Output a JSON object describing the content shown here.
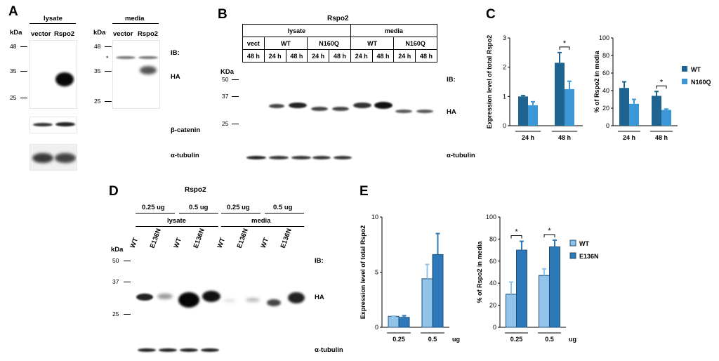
{
  "panelA": {
    "letter": "A",
    "lysate_title": "lysate",
    "media_title": "media",
    "lysate_lanes": [
      "vector",
      "Rspo2"
    ],
    "media_lanes": [
      "vector",
      "Rspo2"
    ],
    "kda": "kDa",
    "markers_lysate": [
      "48",
      "35",
      "25"
    ],
    "markers_media": [
      "48",
      "35",
      "25"
    ],
    "asterisk": "*",
    "ib": "IB:",
    "ha": "HA",
    "beta_catenin": "β-catenin",
    "alpha_tubulin": "α-tubulin"
  },
  "panelB": {
    "letter": "B",
    "title": "Rspo2",
    "groups": [
      "lysate",
      "media"
    ],
    "subgroups": [
      "vect",
      "WT",
      "N160Q",
      "WT",
      "N160Q"
    ],
    "times": [
      "48 h",
      "24 h",
      "48 h",
      "24 h",
      "48 h",
      "24 h",
      "48 h",
      "24 h",
      "48 h"
    ],
    "kda": "KDa",
    "markers": [
      "50",
      "37",
      "25"
    ],
    "ib": "IB:",
    "ha": "HA",
    "alpha_tubulin": "α-tubulin"
  },
  "panelC": {
    "letter": "C",
    "legend": [
      "WT",
      "N160Q"
    ],
    "sig": "*"
  },
  "panelD": {
    "letter": "D",
    "title": "Rspo2",
    "amounts": [
      "0.25 ug",
      "0.5 ug",
      "0.25 ug",
      "0.5 ug"
    ],
    "groups": [
      "lysate",
      "media"
    ],
    "lanes": [
      "WT",
      "E136N",
      "WT",
      "E136N",
      "WT",
      "E136N",
      "WT",
      "E136N"
    ],
    "kda": "kDa",
    "markers": [
      "50",
      "37",
      "25"
    ],
    "ib": "IB:",
    "ha": "HA",
    "alpha_tubulin": "α-tubulin"
  },
  "panelE": {
    "letter": "E",
    "legend": [
      "WT",
      "E136N"
    ],
    "sig": "*"
  },
  "colors": {
    "wt_dark": "#1f6391",
    "mutant_light": "#3b97d6",
    "wt_light_E": "#92c3ea",
    "mutant_dark_E": "#2c78b8"
  },
  "chart_data": [
    {
      "type": "bar",
      "panel": "C-left",
      "title": "",
      "ylabel": "Expression level of total Rspo2",
      "xlabel": "",
      "categories": [
        "24 h",
        "48 h"
      ],
      "ylim": [
        0,
        3
      ],
      "yticks": [
        "0",
        "1",
        "2",
        "3"
      ],
      "series": [
        {
          "name": "WT",
          "values": [
            1.0,
            2.15
          ],
          "errors": [
            0.03,
            0.35
          ]
        },
        {
          "name": "N160Q",
          "values": [
            0.7,
            1.25
          ],
          "errors": [
            0.12,
            0.27
          ]
        }
      ],
      "significance": [
        {
          "category": "48 h",
          "label": "*"
        }
      ],
      "grid": false
    },
    {
      "type": "bar",
      "panel": "C-right",
      "title": "",
      "ylabel": "% of Rspo2 in media",
      "xlabel": "",
      "categories": [
        "24 h",
        "48 h"
      ],
      "ylim": [
        0,
        100
      ],
      "yticks": [
        "0",
        "20",
        "40",
        "60",
        "80",
        "100"
      ],
      "series": [
        {
          "name": "WT",
          "values": [
            43,
            34
          ],
          "errors": [
            7,
            5
          ]
        },
        {
          "name": "N160Q",
          "values": [
            25,
            18
          ],
          "errors": [
            5,
            1
          ]
        }
      ],
      "significance": [
        {
          "category": "48 h",
          "label": "*"
        }
      ],
      "legend_position": "right",
      "grid": false
    },
    {
      "type": "bar",
      "panel": "E-left",
      "title": "",
      "ylabel": "Expression level of total Rspo2",
      "xlabel": "ug",
      "categories": [
        "0.25",
        "0.5"
      ],
      "ylim": [
        0,
        10
      ],
      "yticks": [
        "0",
        "5",
        "10"
      ],
      "series": [
        {
          "name": "WT",
          "values": [
            1.0,
            4.4
          ],
          "errors": [
            0.02,
            1.3
          ]
        },
        {
          "name": "E136N",
          "values": [
            0.9,
            6.6
          ],
          "errors": [
            0.15,
            1.9
          ]
        }
      ],
      "grid": false
    },
    {
      "type": "bar",
      "panel": "E-right",
      "title": "",
      "ylabel": "% of Rspo2 in media",
      "xlabel": "ug",
      "categories": [
        "0.25",
        "0.5"
      ],
      "ylim": [
        0,
        100
      ],
      "yticks": [
        "0",
        "20",
        "40",
        "60",
        "80",
        "100"
      ],
      "series": [
        {
          "name": "WT",
          "values": [
            30,
            47
          ],
          "errors": [
            11,
            6
          ]
        },
        {
          "name": "E136N",
          "values": [
            70,
            73
          ],
          "errors": [
            8,
            6
          ]
        }
      ],
      "significance": [
        {
          "category": "0.25",
          "label": "*"
        },
        {
          "category": "0.5",
          "label": "*"
        }
      ],
      "legend_position": "right",
      "grid": false
    }
  ]
}
